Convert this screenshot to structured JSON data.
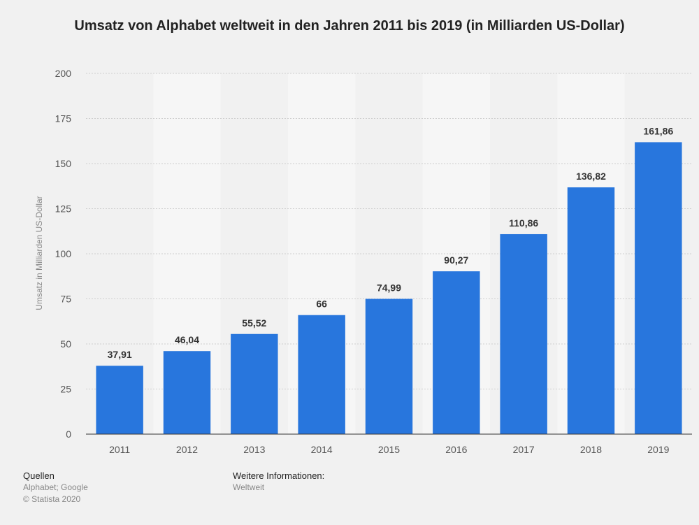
{
  "chart_data": {
    "type": "bar",
    "title": "Umsatz von Alphabet weltweit in den Jahren 2011 bis 2019 (in Milliarden US-Dollar)",
    "xlabel": "",
    "ylabel": "Umsatz in Milliarden US-Dollar",
    "ylim": [
      0,
      200
    ],
    "yticks": [
      0,
      25,
      50,
      75,
      100,
      125,
      150,
      175,
      200
    ],
    "categories": [
      "2011",
      "2012",
      "2013",
      "2014",
      "2015",
      "2016",
      "2017",
      "2018",
      "2019"
    ],
    "values": [
      37.91,
      46.04,
      55.52,
      66,
      74.99,
      90.27,
      110.86,
      136.82,
      161.86
    ],
    "value_labels": [
      "37,91",
      "46,04",
      "55,52",
      "66",
      "74,99",
      "90,27",
      "110,86",
      "136,82",
      "161,86"
    ],
    "bar_color": "#2876dd",
    "grid": true,
    "legend": "none"
  },
  "footer": {
    "sources_heading": "Quellen",
    "sources": "Alphabet; Google",
    "copyright": "© Statista 2020",
    "info_heading": "Weitere Informationen:",
    "info": "Weltweit"
  }
}
